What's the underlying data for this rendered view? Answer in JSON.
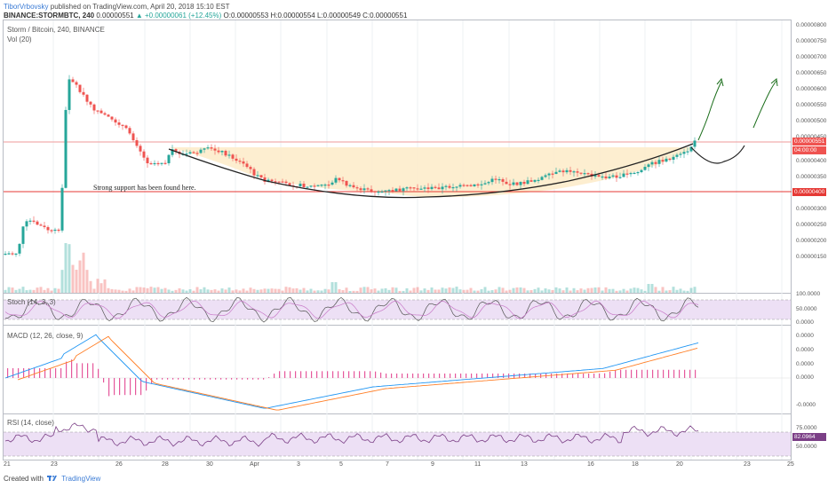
{
  "header": {
    "author": "TiborVrbovsky",
    "published": "published on TradingView.com, April 20, 2018 15:10 EST",
    "symbol": "BINANCE:STORMBTC, 240",
    "last": "0.00000551",
    "change": "▲ +0.00000061 (+12.45%)",
    "open": "O:0.00000553",
    "high": "H:0.00000554",
    "low": "L:0.00000549",
    "close": "C:0.00000551"
  },
  "chart": {
    "title": "Storm / Bitcoin, 240, BINANCE",
    "volume_label": "Vol (20)",
    "annotation": "Strong support has been found here.",
    "price_axis": [
      "0.00000800",
      "0.00000750",
      "0.00000700",
      "0.00000650",
      "0.00000600",
      "0.00000550",
      "0.00000500",
      "0.00000450",
      "0.00000400",
      "0.00000350",
      "0.00000300",
      "0.00000250",
      "0.00000200",
      "0.00000150"
    ],
    "current_price_tag": "0.00000551",
    "countdown_tag": "04:00:00",
    "support_tag": "0.00000400",
    "colors": {
      "up": "#26a69a",
      "down": "#ef5350",
      "support": "#e53935",
      "cup_fill": "#fdebc8",
      "arrow": "#1b6e1b"
    }
  },
  "stoch": {
    "label": "Stoch (14, 3, 3)",
    "axis": [
      "100.0000",
      "50.0000",
      "0.0000"
    ]
  },
  "macd": {
    "label": "MACD (12, 26, close, 9)",
    "axis": [
      "0.0000",
      "0.0000",
      "0.0000",
      "0.0000",
      "-0.0000"
    ]
  },
  "rsi": {
    "label": "RSI (14, close)",
    "axis": [
      "75.0000",
      "50.0000"
    ],
    "value_tag": "82.0964"
  },
  "dates": [
    "21",
    "23",
    "26",
    "28",
    "30",
    "Apr",
    "3",
    "5",
    "7",
    "9",
    "11",
    "13",
    "16",
    "18",
    "20",
    "23",
    "25"
  ],
  "footer": {
    "created": "Created with",
    "brand": "TradingView"
  },
  "chart_data": {
    "type": "candlestick",
    "title": "Storm / Bitcoin, 240, BINANCE",
    "unit": "BTC",
    "support_level": 4e-06,
    "current_price": 5.51e-06,
    "price_range": [
      1.2e-06,
      8.1e-06
    ],
    "x_ticks": [
      "21",
      "23",
      "26",
      "28",
      "30",
      "Apr",
      "3",
      "5",
      "7",
      "9",
      "11",
      "13",
      "16",
      "18",
      "20",
      "23",
      "25"
    ]
  }
}
